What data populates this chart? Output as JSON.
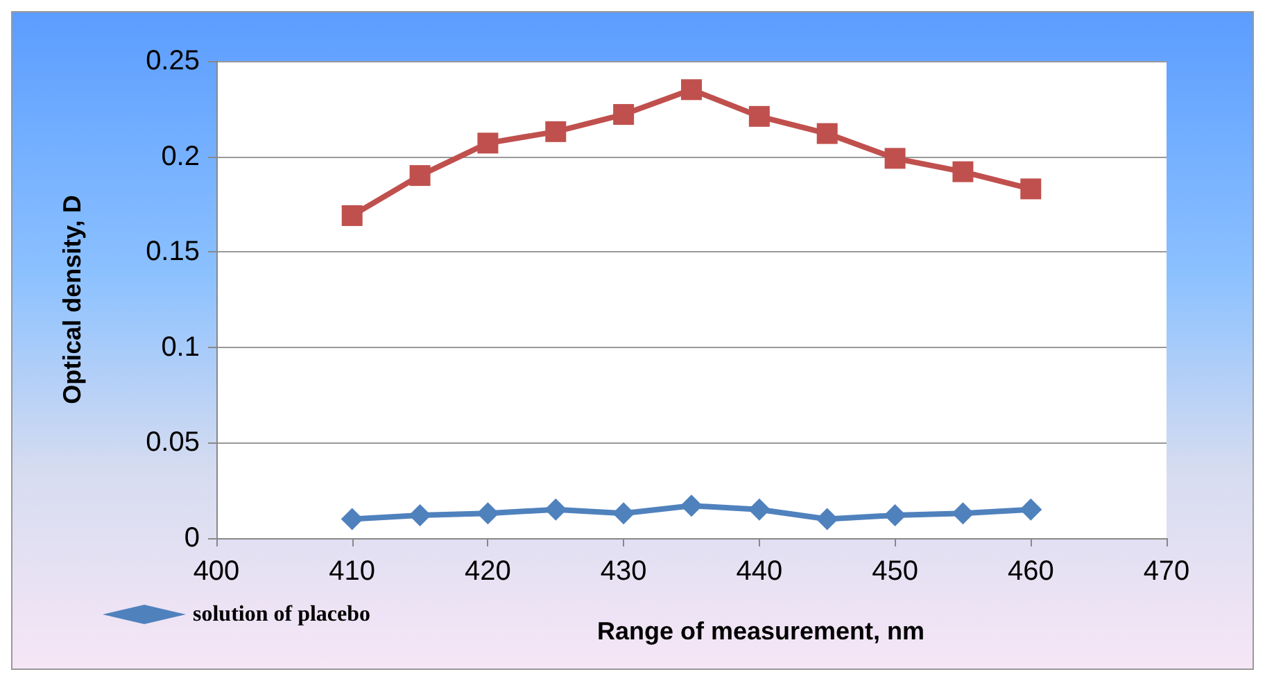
{
  "chart_data": {
    "type": "line",
    "xlabel": "Range of measurement, nm",
    "ylabel": "Optical density, D",
    "x": [
      410,
      415,
      420,
      425,
      430,
      435,
      440,
      445,
      450,
      455,
      460
    ],
    "series": [
      {
        "color": "#c0504d",
        "marker": "square",
        "values": [
          0.169,
          0.19,
          0.207,
          0.213,
          0.222,
          0.235,
          0.221,
          0.212,
          0.199,
          0.192,
          0.183
        ]
      },
      {
        "name": "solution of placebo",
        "color": "#4f81bd",
        "marker": "diamond",
        "values": [
          0.01,
          0.012,
          0.013,
          0.015,
          0.013,
          0.017,
          0.015,
          0.01,
          0.012,
          0.013,
          0.015
        ]
      }
    ],
    "xlim": [
      400,
      470
    ],
    "xticks": [
      400,
      410,
      420,
      430,
      440,
      450,
      460,
      470
    ],
    "ylim": [
      0,
      0.25
    ],
    "yticks": [
      0,
      0.05,
      0.1,
      0.15,
      0.2,
      0.25
    ],
    "grid": "y",
    "legend": "bottom left",
    "line_style": "solid"
  }
}
